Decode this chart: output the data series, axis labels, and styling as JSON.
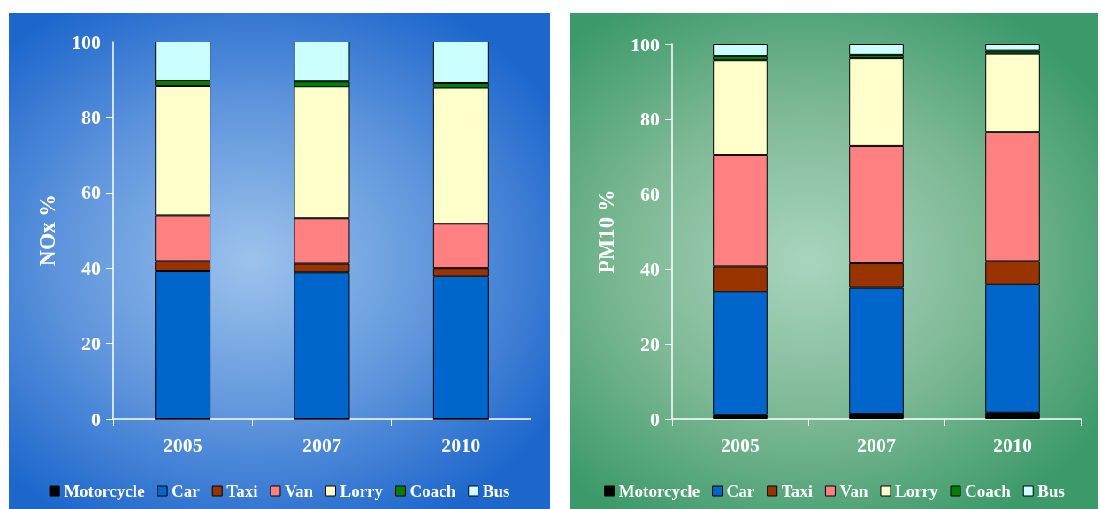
{
  "chart_data": [
    {
      "type": "bar",
      "stacked": true,
      "ylabel": "NOx %",
      "categories": [
        "2005",
        "2007",
        "2010"
      ],
      "ylim": [
        0,
        100
      ],
      "yticks": [
        0,
        20,
        40,
        60,
        80,
        100
      ],
      "legend": "bottom",
      "grid": false,
      "series": [
        {
          "name": "Motorcycle",
          "color": "#000000",
          "values": [
            0,
            0,
            0
          ]
        },
        {
          "name": "Car",
          "color": "#0066cc",
          "values": [
            39.1,
            38.8,
            37.8
          ]
        },
        {
          "name": "Taxi",
          "color": "#993300",
          "values": [
            2.7,
            2.3,
            2.2
          ]
        },
        {
          "name": "Van",
          "color": "#ff8080",
          "values": [
            12.2,
            12.0,
            11.7
          ]
        },
        {
          "name": "Lorry",
          "color": "#ffffcc",
          "values": [
            34.3,
            34.9,
            36.0
          ]
        },
        {
          "name": "Coach",
          "color": "#008000",
          "values": [
            1.4,
            1.4,
            1.3
          ]
        },
        {
          "name": "Bus",
          "color": "#ccffff",
          "values": [
            10.3,
            10.6,
            11.0
          ]
        }
      ]
    },
    {
      "type": "bar",
      "stacked": true,
      "ylabel": "PM10 %",
      "categories": [
        "2005",
        "2007",
        "2010"
      ],
      "ylim": [
        0,
        100
      ],
      "yticks": [
        0,
        20,
        40,
        60,
        80,
        100
      ],
      "legend": "bottom",
      "grid": false,
      "series": [
        {
          "name": "Motorcycle",
          "color": "#000000",
          "values": [
            1.1,
            1.4,
            1.7
          ]
        },
        {
          "name": "Car",
          "color": "#0066cc",
          "values": [
            32.8,
            33.6,
            34.2
          ]
        },
        {
          "name": "Taxi",
          "color": "#993300",
          "values": [
            6.8,
            6.5,
            6.2
          ]
        },
        {
          "name": "Van",
          "color": "#ff8080",
          "values": [
            29.8,
            31.4,
            34.5
          ]
        },
        {
          "name": "Lorry",
          "color": "#ffffcc",
          "values": [
            25.2,
            23.3,
            20.9
          ]
        },
        {
          "name": "Coach",
          "color": "#008000",
          "values": [
            1.2,
            1.0,
            0.7
          ]
        },
        {
          "name": "Bus",
          "color": "#ccffff",
          "values": [
            3.1,
            2.8,
            1.8
          ]
        }
      ]
    }
  ]
}
